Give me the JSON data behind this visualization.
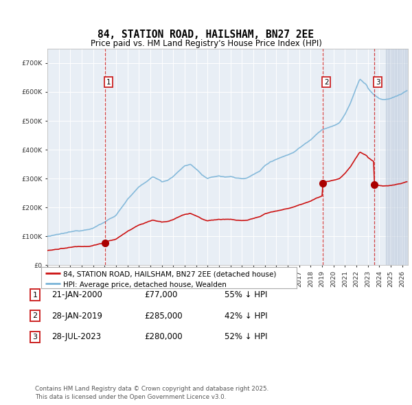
{
  "title": "84, STATION ROAD, HAILSHAM, BN27 2EE",
  "subtitle": "Price paid vs. HM Land Registry's House Price Index (HPI)",
  "hpi_label": "HPI: Average price, detached house, Wealden",
  "property_label": "84, STATION ROAD, HAILSHAM, BN27 2EE (detached house)",
  "hpi_color": "#7ab4d8",
  "property_color": "#cc1111",
  "sale_color": "#aa0000",
  "vline_color": "#cc2222",
  "background_color": "#e8eef5",
  "sales": [
    {
      "date_num": 2000.056,
      "price": 77000,
      "label": "1"
    },
    {
      "date_num": 2019.074,
      "price": 285000,
      "label": "2"
    },
    {
      "date_num": 2023.569,
      "price": 280000,
      "label": "3"
    }
  ],
  "table_entries": [
    {
      "num": "1",
      "date": "21-JAN-2000",
      "price": "£77,000",
      "note": "55% ↓ HPI"
    },
    {
      "num": "2",
      "date": "28-JAN-2019",
      "price": "£285,000",
      "note": "42% ↓ HPI"
    },
    {
      "num": "3",
      "date": "28-JUL-2023",
      "price": "£280,000",
      "note": "52% ↓ HPI"
    }
  ],
  "footer": "Contains HM Land Registry data © Crown copyright and database right 2025.\nThis data is licensed under the Open Government Licence v3.0.",
  "ylim": [
    0,
    750000
  ],
  "xlim_start": 1995.0,
  "xlim_end": 2026.5
}
